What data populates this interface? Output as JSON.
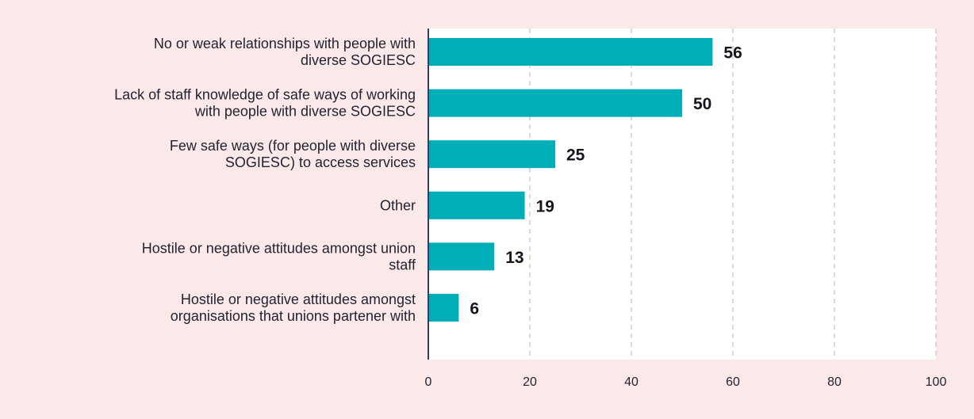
{
  "chart_data": {
    "type": "bar",
    "orientation": "horizontal",
    "categories": [
      [
        "No or weak relationships with people with",
        "diverse SOGIESC"
      ],
      [
        "Lack of staff knowledge of safe ways of working",
        "with people with diverse SOGIESC"
      ],
      [
        "Few safe ways (for people with diverse",
        "SOGIESC) to access services"
      ],
      [
        "Other"
      ],
      [
        "Hostile or negative attitudes amongst union",
        "staff"
      ],
      [
        "Hostile or negative attitudes amongst",
        "organisations that unions partener with"
      ]
    ],
    "values": [
      56,
      50,
      25,
      19,
      13,
      6
    ],
    "value_labels": [
      "56",
      "50",
      "25",
      "19",
      "13",
      "6"
    ],
    "xlim": [
      0,
      100
    ],
    "xticks": [
      0,
      20,
      40,
      60,
      80,
      100
    ],
    "grid": "vertical dashed",
    "colors": {
      "bar": "#00aeb8",
      "background": "#fbe9e9",
      "plot_background": "#ffffff",
      "axis": "#2d3f66",
      "grid": "#c8c8c8"
    }
  }
}
